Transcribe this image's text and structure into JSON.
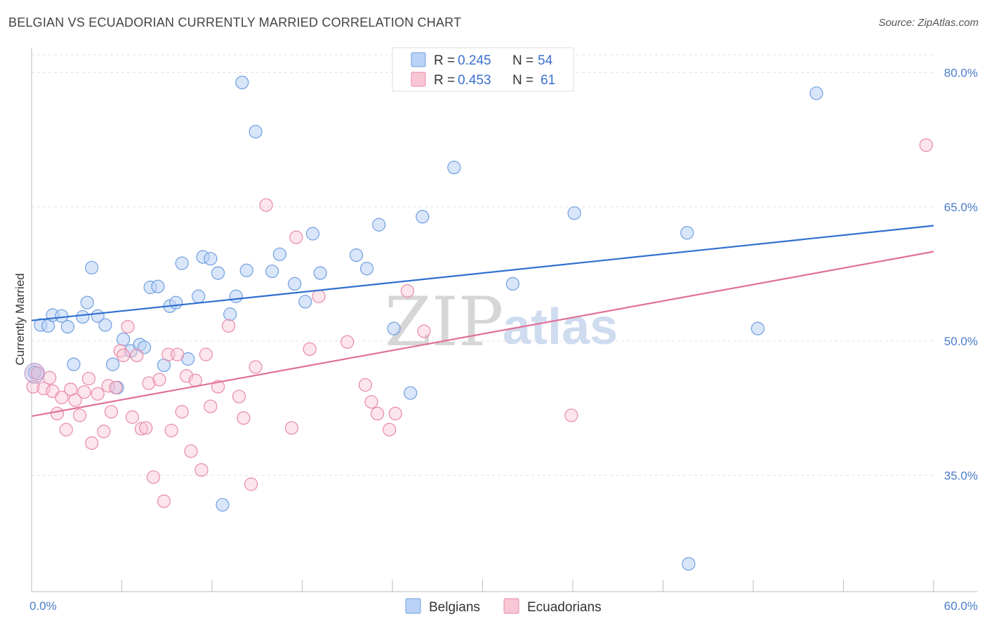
{
  "title": "BELGIAN VS ECUADORIAN CURRENTLY MARRIED CORRELATION CHART",
  "source": "Source: ZipAtlas.com",
  "watermark": {
    "zip": "ZIP",
    "atlas": "atlas"
  },
  "legend": {
    "r_label": "R =",
    "n_label": "N =",
    "rows": [
      {
        "r": "0.245",
        "n": "54",
        "color": "#6f9fe0",
        "fill": "#b9d2f5"
      },
      {
        "r": "0.453",
        "n": "61",
        "color": "#e88aa8",
        "fill": "#f8c6d5"
      }
    ]
  },
  "bottom_legend": [
    "Belgians",
    "Ecuadorians"
  ],
  "chart_data": {
    "type": "scatter",
    "title": "BELGIAN VS ECUADORIAN CURRENTLY MARRIED CORRELATION CHART",
    "xlabel": "",
    "ylabel": "Currently Married",
    "xlim": [
      0,
      60
    ],
    "ylim": [
      22,
      82
    ],
    "x_tick_labels": [
      "0.0%",
      "60.0%"
    ],
    "y_ticks": [
      35,
      50,
      65,
      80
    ],
    "y_tick_labels": [
      "35.0%",
      "50.0%",
      "65.0%",
      "80.0%"
    ],
    "grid": true,
    "legend_position": "top-center",
    "series": [
      {
        "name": "Belgians",
        "color": "#5b8fd8",
        "trend": {
          "x": [
            0,
            60
          ],
          "y": [
            52.3,
            62.9
          ]
        },
        "points": [
          [
            0.2,
            46.5
          ],
          [
            0.6,
            51.8
          ],
          [
            1.1,
            51.7
          ],
          [
            1.4,
            52.9
          ],
          [
            2.0,
            52.8
          ],
          [
            2.4,
            51.6
          ],
          [
            2.8,
            47.4
          ],
          [
            3.4,
            52.7
          ],
          [
            3.7,
            54.3
          ],
          [
            4.0,
            58.2
          ],
          [
            4.4,
            52.8
          ],
          [
            4.9,
            51.8
          ],
          [
            5.4,
            47.4
          ],
          [
            5.7,
            44.8
          ],
          [
            6.1,
            50.2
          ],
          [
            6.6,
            48.9
          ],
          [
            7.2,
            49.6
          ],
          [
            7.5,
            49.3
          ],
          [
            7.9,
            56.0
          ],
          [
            8.4,
            56.1
          ],
          [
            8.8,
            47.3
          ],
          [
            9.2,
            53.9
          ],
          [
            9.6,
            54.3
          ],
          [
            10.0,
            58.7
          ],
          [
            10.4,
            48.0
          ],
          [
            11.1,
            55.0
          ],
          [
            11.4,
            59.4
          ],
          [
            11.9,
            59.2
          ],
          [
            12.4,
            57.6
          ],
          [
            12.7,
            31.7
          ],
          [
            13.2,
            53.0
          ],
          [
            13.6,
            55.0
          ],
          [
            14.0,
            78.9
          ],
          [
            14.3,
            57.9
          ],
          [
            14.9,
            73.4
          ],
          [
            16.0,
            57.8
          ],
          [
            16.5,
            59.7
          ],
          [
            17.5,
            56.4
          ],
          [
            18.2,
            54.4
          ],
          [
            18.7,
            62.0
          ],
          [
            19.2,
            57.6
          ],
          [
            21.6,
            59.6
          ],
          [
            22.3,
            58.1
          ],
          [
            23.1,
            63.0
          ],
          [
            24.1,
            51.4
          ],
          [
            25.2,
            44.2
          ],
          [
            26.0,
            63.9
          ],
          [
            28.1,
            69.4
          ],
          [
            32.0,
            56.4
          ],
          [
            36.1,
            64.3
          ],
          [
            43.6,
            62.1
          ],
          [
            43.7,
            25.1
          ],
          [
            48.3,
            51.4
          ],
          [
            52.2,
            77.7
          ]
        ]
      },
      {
        "name": "Ecuadorians",
        "color": "#e88aa8",
        "trend": {
          "x": [
            0,
            60
          ],
          "y": [
            41.6,
            60.0
          ]
        },
        "points": [
          [
            0.1,
            44.9
          ],
          [
            0.4,
            46.4
          ],
          [
            0.8,
            44.7
          ],
          [
            1.2,
            45.9
          ],
          [
            1.4,
            44.4
          ],
          [
            1.7,
            41.9
          ],
          [
            2.0,
            43.7
          ],
          [
            2.3,
            40.1
          ],
          [
            2.6,
            44.6
          ],
          [
            2.9,
            43.4
          ],
          [
            3.2,
            41.7
          ],
          [
            3.5,
            44.3
          ],
          [
            3.8,
            45.8
          ],
          [
            4.0,
            38.6
          ],
          [
            4.4,
            44.1
          ],
          [
            4.8,
            39.9
          ],
          [
            5.1,
            45.0
          ],
          [
            5.3,
            42.1
          ],
          [
            5.6,
            44.8
          ],
          [
            5.9,
            48.9
          ],
          [
            6.1,
            48.4
          ],
          [
            6.4,
            51.6
          ],
          [
            6.7,
            41.5
          ],
          [
            7.0,
            48.4
          ],
          [
            7.3,
            40.2
          ],
          [
            7.6,
            40.3
          ],
          [
            7.8,
            45.3
          ],
          [
            8.1,
            34.8
          ],
          [
            8.5,
            45.7
          ],
          [
            8.8,
            32.1
          ],
          [
            9.1,
            48.5
          ],
          [
            9.3,
            40.0
          ],
          [
            9.7,
            48.5
          ],
          [
            10.0,
            42.1
          ],
          [
            10.3,
            46.1
          ],
          [
            10.6,
            37.7
          ],
          [
            10.9,
            45.6
          ],
          [
            11.3,
            35.6
          ],
          [
            11.6,
            48.5
          ],
          [
            11.9,
            42.7
          ],
          [
            12.4,
            44.9
          ],
          [
            13.1,
            51.7
          ],
          [
            13.8,
            43.8
          ],
          [
            14.1,
            41.4
          ],
          [
            14.6,
            34.0
          ],
          [
            14.9,
            47.1
          ],
          [
            15.6,
            65.2
          ],
          [
            17.3,
            40.3
          ],
          [
            17.6,
            61.6
          ],
          [
            18.5,
            49.1
          ],
          [
            19.1,
            55.0
          ],
          [
            21.0,
            49.9
          ],
          [
            22.2,
            45.1
          ],
          [
            22.6,
            43.2
          ],
          [
            23.0,
            41.9
          ],
          [
            23.8,
            40.1
          ],
          [
            24.2,
            41.9
          ],
          [
            25.0,
            55.6
          ],
          [
            26.1,
            51.1
          ],
          [
            35.9,
            41.7
          ],
          [
            59.5,
            71.9
          ]
        ]
      }
    ]
  }
}
